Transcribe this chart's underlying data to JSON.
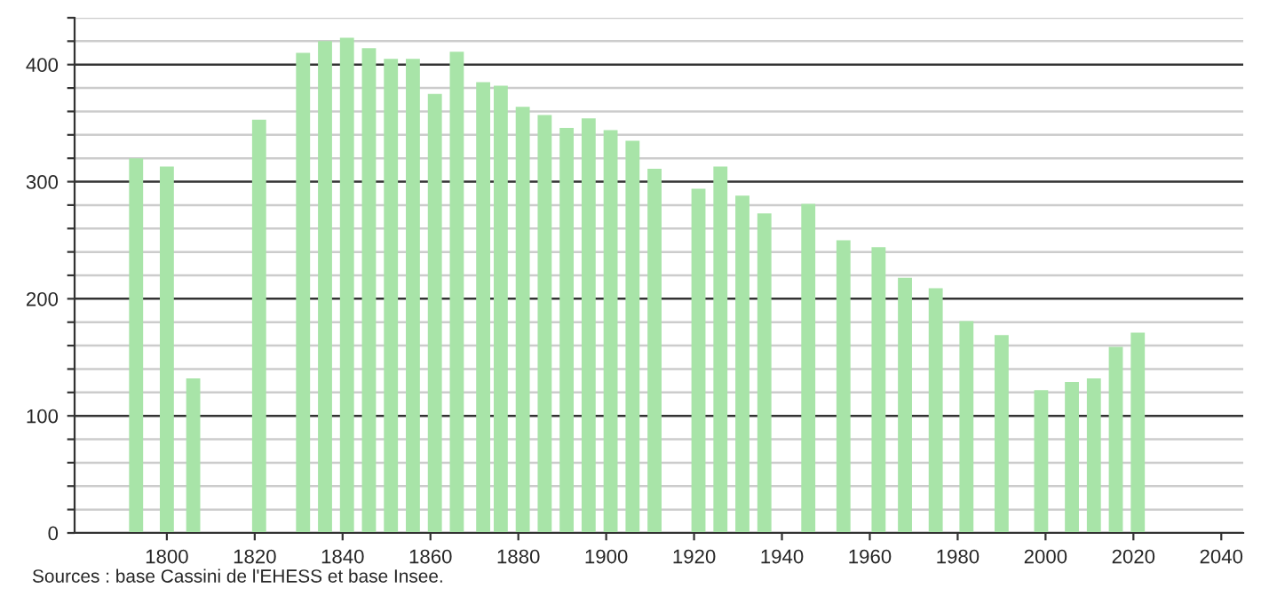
{
  "chart_data": {
    "type": "bar",
    "color": "#a8e4a8",
    "x": [
      1793,
      1800,
      1806,
      1821,
      1831,
      1836,
      1841,
      1846,
      1851,
      1856,
      1861,
      1866,
      1872,
      1876,
      1881,
      1886,
      1891,
      1896,
      1901,
      1906,
      1911,
      1921,
      1926,
      1931,
      1936,
      1946,
      1954,
      1962,
      1968,
      1975,
      1982,
      1990,
      1999,
      2006,
      2011,
      2016,
      2021
    ],
    "values": [
      320,
      313,
      132,
      353,
      410,
      420,
      423,
      414,
      405,
      405,
      375,
      411,
      385,
      382,
      364,
      357,
      346,
      354,
      344,
      335,
      311,
      294,
      313,
      288,
      273,
      281,
      250,
      244,
      218,
      209,
      181,
      169,
      122,
      129,
      132,
      159,
      171
    ],
    "xlim": [
      1779,
      2045
    ],
    "xticks": [
      1800,
      1820,
      1840,
      1860,
      1880,
      1900,
      1920,
      1940,
      1960,
      1980,
      2000,
      2020,
      2040
    ],
    "ylim": [
      0,
      440
    ],
    "yticks": [
      0,
      {
        "value": 20,
        "label": null
      },
      {
        "value": 40,
        "label": null
      },
      {
        "value": 60,
        "label": null
      },
      {
        "value": 80,
        "label": null
      },
      100,
      {
        "value": 120,
        "label": null
      },
      {
        "value": 140,
        "label": null
      },
      {
        "value": 160,
        "label": null
      },
      {
        "value": 180,
        "label": null
      },
      200,
      {
        "value": 220,
        "label": null
      },
      {
        "value": 240,
        "label": null
      },
      {
        "value": 260,
        "label": null
      },
      {
        "value": 280,
        "label": null
      },
      300,
      {
        "value": 320,
        "label": null
      },
      {
        "value": 340,
        "label": null
      },
      {
        "value": 360,
        "label": null
      },
      {
        "value": 380,
        "label": null
      },
      400,
      {
        "value": 420,
        "label": null
      },
      {
        "value": 440,
        "label": null
      }
    ],
    "grid": "y",
    "annotations": [
      "Sources : base Cassini de l'EHESS et base Insee."
    ]
  }
}
